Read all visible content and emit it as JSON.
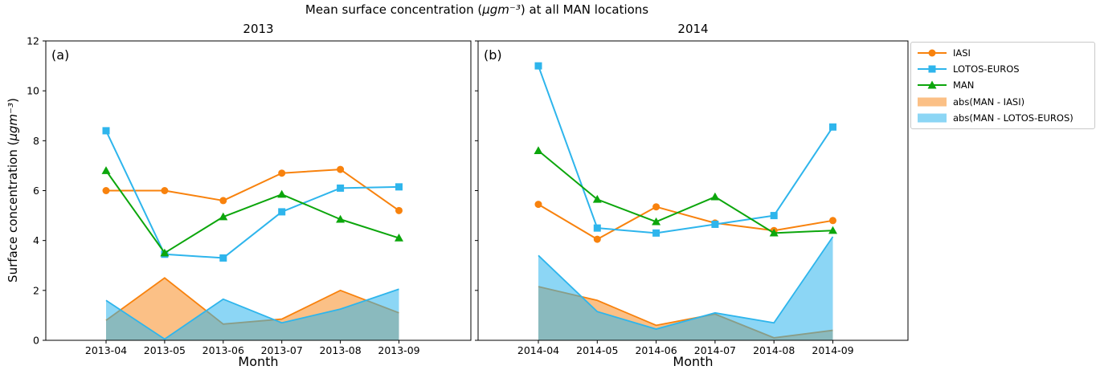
{
  "figure": {
    "title_pre": "Mean surface concentration (",
    "title_math": "μgm⁻³",
    "title_post": ") at all MAN locations",
    "ylabel_pre": "Surface concentration (",
    "ylabel_math": "μgm⁻³",
    "ylabel_post": ")",
    "xlabel": "Month",
    "colors": {
      "iasi": "#f8820d",
      "lotos_euros": "#2eb5ec",
      "man": "#0ca60c",
      "abs_man_iasi_fill": "rgba(248,130,13,0.5)",
      "abs_man_lotos_fill": "rgba(46,181,236,0.55)",
      "axis": "#000000"
    }
  },
  "legend": {
    "items": [
      {
        "label": "IASI",
        "type": "line-circle",
        "color": "#f8820d"
      },
      {
        "label": "LOTOS-EUROS",
        "type": "line-square",
        "color": "#2eb5ec"
      },
      {
        "label": "MAN",
        "type": "line-triangle",
        "color": "#0ca60c"
      },
      {
        "label": "abs(MAN - IASI)",
        "type": "patch",
        "color": "rgba(248,130,13,0.5)"
      },
      {
        "label": "abs(MAN - LOTOS-EUROS)",
        "type": "patch",
        "color": "rgba(46,181,236,0.55)"
      }
    ]
  },
  "chart_data": [
    {
      "type": "line+area",
      "panel_label": "(a)",
      "title": "2013",
      "xlabel": "Month",
      "x": [
        "2013-04",
        "2013-05",
        "2013-06",
        "2013-07",
        "2013-08",
        "2013-09"
      ],
      "ylim": [
        0,
        12
      ],
      "yticks": [
        0,
        2,
        4,
        6,
        8,
        10,
        12
      ],
      "show_ytick_labels": true,
      "series": [
        {
          "name": "IASI",
          "color": "#f8820d",
          "marker": "circle",
          "values": [
            6.0,
            6.0,
            5.6,
            6.7,
            6.85,
            5.2
          ]
        },
        {
          "name": "LOTOS-EUROS",
          "color": "#2eb5ec",
          "marker": "square",
          "values": [
            8.4,
            3.45,
            3.3,
            5.15,
            6.1,
            6.15
          ]
        },
        {
          "name": "MAN",
          "color": "#0ca60c",
          "marker": "triangle",
          "values": [
            6.8,
            3.5,
            4.95,
            5.85,
            4.85,
            4.1
          ]
        }
      ],
      "areas": [
        {
          "name": "abs(MAN - IASI)",
          "fill": "rgba(248,130,13,0.5)",
          "edge_color": "#f8820d",
          "values": [
            0.8,
            2.5,
            0.65,
            0.85,
            2.0,
            1.1
          ]
        },
        {
          "name": "abs(MAN - LOTOS-EUROS)",
          "fill": "rgba(46,181,236,0.55)",
          "edge_color": "#2eb5ec",
          "values": [
            1.6,
            0.05,
            1.65,
            0.7,
            1.25,
            2.05
          ]
        }
      ]
    },
    {
      "type": "line+area",
      "panel_label": "(b)",
      "title": "2014",
      "xlabel": "Month",
      "x": [
        "2014-04",
        "2014-05",
        "2014-06",
        "2014-07",
        "2014-08",
        "2014-09"
      ],
      "ylim": [
        0,
        12
      ],
      "yticks": [
        0,
        2,
        4,
        6,
        8,
        10,
        12
      ],
      "show_ytick_labels": false,
      "series": [
        {
          "name": "IASI",
          "color": "#f8820d",
          "marker": "circle",
          "values": [
            5.45,
            4.05,
            5.35,
            4.7,
            4.4,
            4.8
          ]
        },
        {
          "name": "LOTOS-EUROS",
          "color": "#2eb5ec",
          "marker": "square",
          "values": [
            11.0,
            4.5,
            4.3,
            4.65,
            5.0,
            8.55
          ]
        },
        {
          "name": "MAN",
          "color": "#0ca60c",
          "marker": "triangle",
          "values": [
            7.6,
            5.65,
            4.75,
            5.75,
            4.3,
            4.4
          ]
        }
      ],
      "areas": [
        {
          "name": "abs(MAN - IASI)",
          "fill": "rgba(248,130,13,0.5)",
          "edge_color": "#f8820d",
          "values": [
            2.15,
            1.6,
            0.6,
            1.05,
            0.1,
            0.4
          ]
        },
        {
          "name": "abs(MAN - LOTOS-EUROS)",
          "fill": "rgba(46,181,236,0.55)",
          "edge_color": "#2eb5ec",
          "values": [
            3.4,
            1.15,
            0.45,
            1.1,
            0.7,
            4.15
          ]
        }
      ]
    }
  ]
}
